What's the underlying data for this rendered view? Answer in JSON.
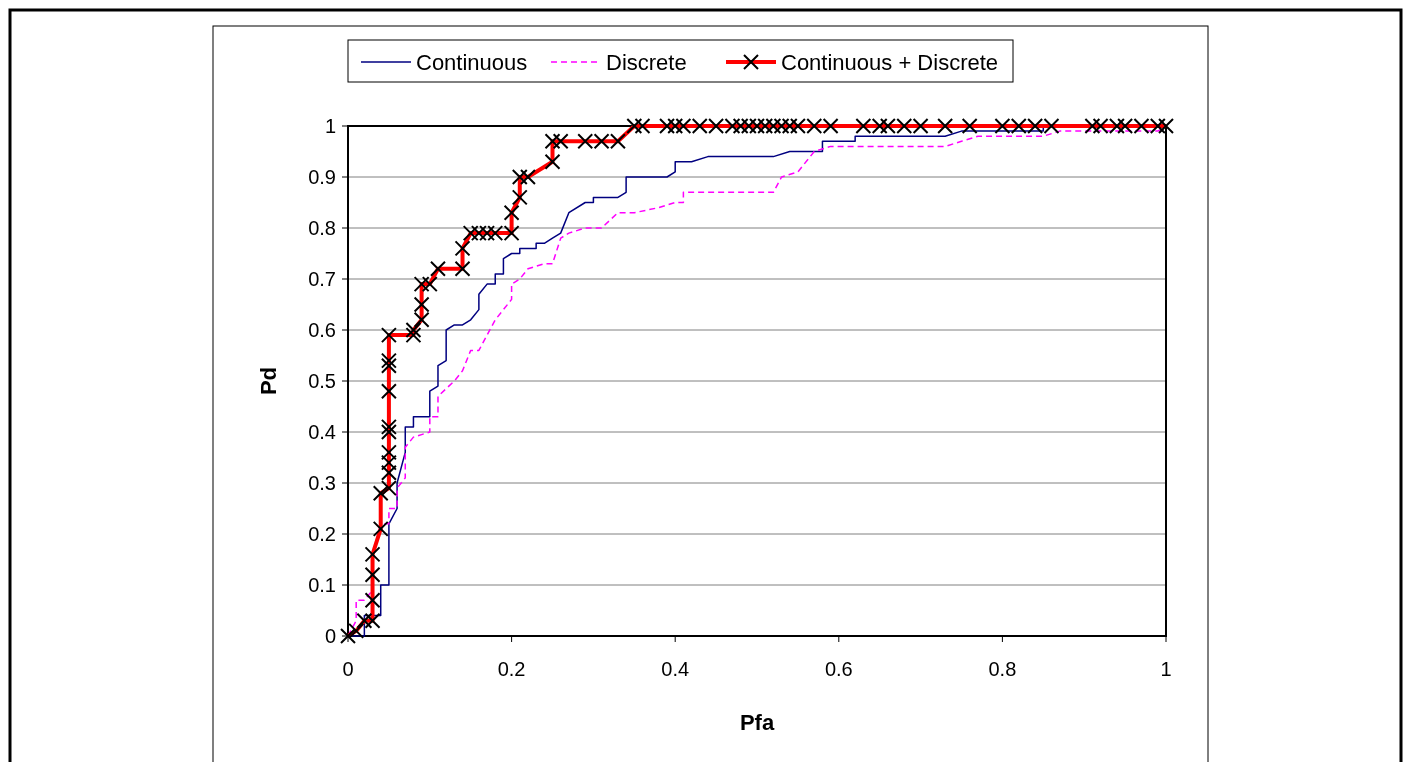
{
  "chart_data": {
    "type": "line",
    "xlabel": "Pfa",
    "ylabel": "Pd",
    "xlim": [
      0,
      1
    ],
    "ylim": [
      0,
      1
    ],
    "xticks": [
      0,
      0.2,
      0.4,
      0.6,
      0.8,
      1
    ],
    "yticks": [
      0,
      0.1,
      0.2,
      0.3,
      0.4,
      0.5,
      0.6,
      0.7,
      0.8,
      0.9,
      1
    ],
    "grid": "y",
    "legend": "top",
    "series": [
      {
        "name": "Continuous",
        "color": "#000080",
        "line_style": "solid",
        "marker": "none",
        "x": [
          0,
          0.02,
          0.02,
          0.04,
          0.04,
          0.05,
          0.05,
          0.06,
          0.06,
          0.07,
          0.07,
          0.08,
          0.08,
          0.1,
          0.1,
          0.11,
          0.11,
          0.12,
          0.12,
          0.13,
          0.14,
          0.15,
          0.16,
          0.16,
          0.17,
          0.18,
          0.18,
          0.19,
          0.19,
          0.2,
          0.21,
          0.21,
          0.23,
          0.23,
          0.24,
          0.25,
          0.26,
          0.27,
          0.29,
          0.3,
          0.3,
          0.33,
          0.34,
          0.34,
          0.39,
          0.4,
          0.4,
          0.42,
          0.44,
          0.52,
          0.54,
          0.58,
          0.58,
          0.62,
          0.62,
          0.73,
          0.75,
          0.85,
          0.85,
          1
        ],
        "values": [
          0,
          0,
          0.04,
          0.04,
          0.1,
          0.1,
          0.22,
          0.25,
          0.3,
          0.36,
          0.41,
          0.41,
          0.43,
          0.43,
          0.48,
          0.49,
          0.53,
          0.54,
          0.6,
          0.61,
          0.61,
          0.62,
          0.64,
          0.67,
          0.69,
          0.69,
          0.71,
          0.71,
          0.74,
          0.75,
          0.75,
          0.76,
          0.76,
          0.77,
          0.77,
          0.78,
          0.79,
          0.83,
          0.85,
          0.85,
          0.86,
          0.86,
          0.87,
          0.9,
          0.9,
          0.91,
          0.93,
          0.93,
          0.94,
          0.94,
          0.95,
          0.95,
          0.97,
          0.97,
          0.98,
          0.98,
          0.99,
          0.99,
          1,
          1
        ]
      },
      {
        "name": "Discrete",
        "color": "#ff00ff",
        "line_style": "dashed",
        "marker": "none",
        "x": [
          0,
          0.01,
          0.01,
          0.02,
          0.03,
          0.03,
          0.04,
          0.05,
          0.05,
          0.06,
          0.06,
          0.07,
          0.07,
          0.08,
          0.1,
          0.1,
          0.11,
          0.11,
          0.13,
          0.14,
          0.15,
          0.16,
          0.17,
          0.18,
          0.19,
          0.2,
          0.2,
          0.21,
          0.22,
          0.24,
          0.25,
          0.26,
          0.27,
          0.29,
          0.31,
          0.33,
          0.35,
          0.38,
          0.4,
          0.41,
          0.41,
          0.52,
          0.53,
          0.55,
          0.57,
          0.59,
          0.73,
          0.75,
          0.77,
          0.85,
          0.87,
          0.99,
          1
        ],
        "values": [
          0,
          0.03,
          0.07,
          0.07,
          0.09,
          0.16,
          0.22,
          0.22,
          0.25,
          0.25,
          0.29,
          0.31,
          0.37,
          0.39,
          0.4,
          0.43,
          0.43,
          0.47,
          0.5,
          0.52,
          0.56,
          0.56,
          0.59,
          0.62,
          0.64,
          0.66,
          0.69,
          0.7,
          0.72,
          0.73,
          0.73,
          0.78,
          0.79,
          0.8,
          0.8,
          0.83,
          0.83,
          0.84,
          0.85,
          0.85,
          0.87,
          0.87,
          0.9,
          0.91,
          0.95,
          0.96,
          0.96,
          0.97,
          0.98,
          0.98,
          0.99,
          0.99,
          1
        ]
      },
      {
        "name": "Continuous + Discrete",
        "color": "#ff0000",
        "line_style": "solid",
        "marker": "cross",
        "x": [
          0,
          0.01,
          0.02,
          0.03,
          0.03,
          0.03,
          0.03,
          0.04,
          0.04,
          0.05,
          0.05,
          0.05,
          0.05,
          0.05,
          0.05,
          0.05,
          0.05,
          0.05,
          0.05,
          0.08,
          0.08,
          0.09,
          0.09,
          0.09,
          0.1,
          0.11,
          0.14,
          0.14,
          0.15,
          0.16,
          0.17,
          0.18,
          0.2,
          0.2,
          0.21,
          0.21,
          0.22,
          0.25,
          0.25,
          0.26,
          0.29,
          0.31,
          0.33,
          0.35,
          0.36,
          0.39,
          0.4,
          0.41,
          0.43,
          0.45,
          0.47,
          0.48,
          0.49,
          0.5,
          0.51,
          0.52,
          0.53,
          0.54,
          0.55,
          0.57,
          0.59,
          0.63,
          0.65,
          0.66,
          0.68,
          0.7,
          0.73,
          0.76,
          0.8,
          0.82,
          0.84,
          0.86,
          0.91,
          0.92,
          0.94,
          0.95,
          0.97,
          0.99,
          1
        ],
        "values": [
          0,
          0.01,
          0.03,
          0.03,
          0.07,
          0.12,
          0.16,
          0.21,
          0.28,
          0.29,
          0.32,
          0.34,
          0.36,
          0.4,
          0.41,
          0.48,
          0.53,
          0.54,
          0.59,
          0.59,
          0.6,
          0.62,
          0.65,
          0.69,
          0.69,
          0.72,
          0.72,
          0.76,
          0.79,
          0.79,
          0.79,
          0.79,
          0.79,
          0.83,
          0.86,
          0.9,
          0.9,
          0.93,
          0.97,
          0.97,
          0.97,
          0.97,
          0.97,
          1,
          1,
          1,
          1,
          1,
          1,
          1,
          1,
          1,
          1,
          1,
          1,
          1,
          1,
          1,
          1,
          1,
          1,
          1,
          1,
          1,
          1,
          1,
          1,
          1,
          1,
          1,
          1,
          1,
          1,
          1,
          1,
          1,
          1,
          1,
          1
        ]
      }
    ]
  }
}
